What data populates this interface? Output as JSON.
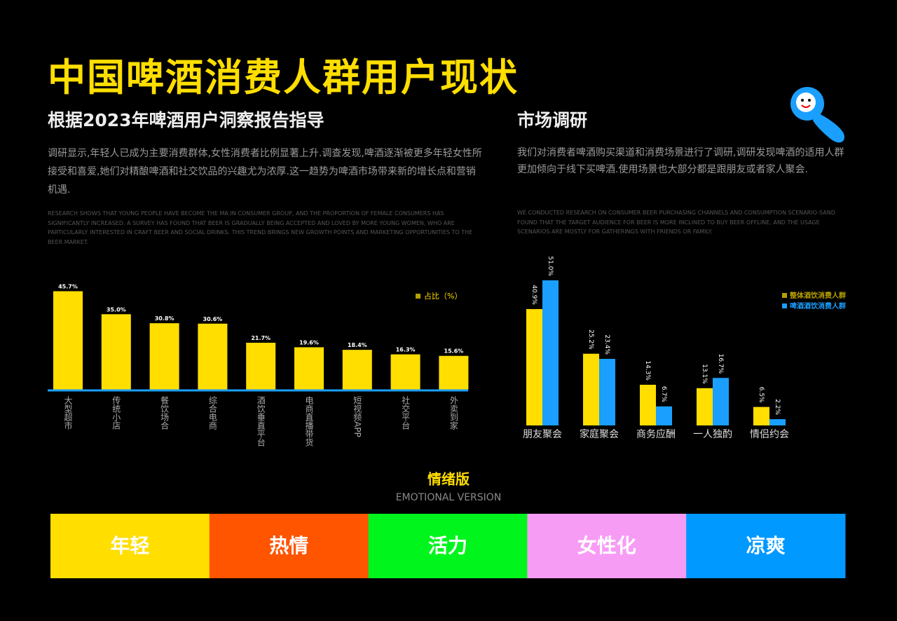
{
  "header": {
    "title": "中国啤酒消费人群用户现状",
    "subtitle": "根据2023年啤酒用户洞察报告指导",
    "paragraph": "调研显示,年轻人已成为主要消费群体,女性消费者比例显著上升.调查发现,啤酒逐渐被更多年轻女性所接受和喜爱,她们对精酿啤酒和社交饮品的兴趣尤为浓厚.这一趋势为啤酒市场带来新的增长点和营销机遇.",
    "english": "RESEARCH SHOWS THAT YOUNG PEOPLE HAVE BECOME THE MA IN CONSUMER GROUP, AND THE PROPORTION OF FEMALE CONSUMERS HAS SIGNIFICANTLY INCREASED. A SURVEY HAS FOUND THAT BEER IS GRADUALLY BEING ACCEPTED AND LOVED BY MORE YOUNG WOMEN, WHO ARE PARTICULARLY INTERESTED IN CRAFT BEER AND SOCIAL DRINKS. THIS TREND BRINGS NEW GROWTH POINTS AND MARKETING OPPORTUNITIES TO THE BEER MARKET."
  },
  "market": {
    "title": "市场调研",
    "paragraph": "我们对消费者啤酒购买渠道和消费场景进行了调研,调研发现啤酒的适用人群更加倾向于线下买啤酒.使用场景也大部分都是跟朋友或者家人聚会.",
    "english": "WE CONDUCTED RESEARCH ON CONSUMER BEER PURCHASING CHANNELS AND CONSUMPTION SCENARIO-SAND FOUND THAT THE TARGET AUDIENCE FOR BEER IS MORE INCLINED TO BUY BEER OFFLINE, AND THE USAGE SCENARIOS ARE MOSTLY FOR GATHERINGS WITH FRIENDS OR FAMILY."
  },
  "chart_data": [
    {
      "type": "bar",
      "categories": [
        "大型超市",
        "传统小店",
        "餐饮场合",
        "综合电商",
        "酒饮垂直平台",
        "电商直播带货",
        "短视频APP",
        "社交平台",
        "外卖到家"
      ],
      "series": [
        {
          "name": "占比（%）",
          "color": "#ffde00",
          "values": [
            45.7,
            35.0,
            30.8,
            30.6,
            21.7,
            19.6,
            18.4,
            16.3,
            15.6
          ],
          "value_labels": [
            "45.7%",
            "35.0%",
            "30.8%",
            "30.6%",
            "21.7%",
            "19.6%",
            "18.4%",
            "16.3%",
            "15.6%"
          ]
        }
      ],
      "legend": "top-right"
    },
    {
      "type": "grouped-bar",
      "categories": [
        "朋友聚会",
        "家庭聚会",
        "商务应酬",
        "一人独酌",
        "情侣约会"
      ],
      "series": [
        {
          "name": "整体酒饮消费人群",
          "color": "#ffde00",
          "values": [
            40.9,
            25.2,
            14.3,
            13.1,
            6.5
          ],
          "value_labels": [
            "40.9%",
            "25.2%",
            "14.3%",
            "13.1%",
            "6.5%"
          ]
        },
        {
          "name": "啤酒酒饮消费人群",
          "color": "#1a9fff",
          "values": [
            51.0,
            23.4,
            6.7,
            16.7,
            2.2
          ],
          "value_labels": [
            "51.0%",
            "23.4%",
            "6.7%",
            "16.7%",
            "2.2%"
          ]
        }
      ],
      "legend": "top-right"
    }
  ],
  "emotional": {
    "title": "情绪版",
    "subtitle": "EMOTIONAL VERSION",
    "items": [
      {
        "label": "年轻",
        "color": "#ffde00"
      },
      {
        "label": "热情",
        "color": "#ff5400"
      },
      {
        "label": "活力",
        "color": "#00f51d"
      },
      {
        "label": "女性化",
        "color": "#f79cf5"
      },
      {
        "label": "凉爽",
        "color": "#0099ff"
      }
    ]
  }
}
